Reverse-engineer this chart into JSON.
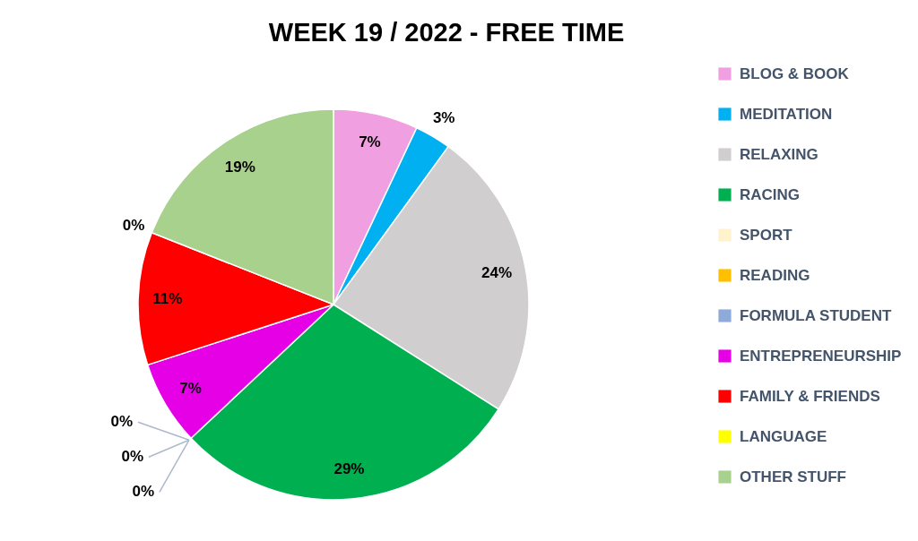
{
  "chart_data": {
    "type": "pie",
    "title": "WEEK 19 / 2022 - FREE TIME",
    "categories": [
      "BLOG & BOOK",
      "MEDITATION",
      "RELAXING",
      "RACING",
      "SPORT",
      "READING",
      "FORMULA STUDENT",
      "ENTREPRENEURSHIP",
      "FAMILY & FRIENDS",
      "LANGUAGE",
      "OTHER STUFF"
    ],
    "values": [
      7,
      3,
      24,
      29,
      0,
      0,
      0,
      7,
      11,
      0,
      19
    ],
    "colors": [
      "#f0a0e0",
      "#00b0f0",
      "#d0cece",
      "#00b050",
      "#fff2cc",
      "#ffc000",
      "#8eaadb",
      "#e600e6",
      "#ff0000",
      "#ffff00",
      "#a9d18e"
    ],
    "value_labels": [
      "7%",
      "3%",
      "24%",
      "29%",
      "0%",
      "0%",
      "0%",
      "7%",
      "11%",
      "0%",
      "19%"
    ],
    "legend": "right"
  }
}
